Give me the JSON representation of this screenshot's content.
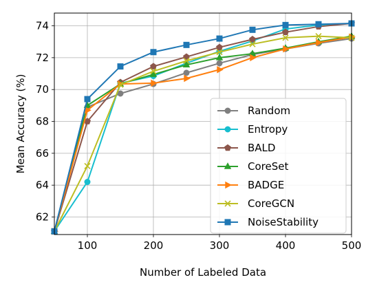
{
  "chart_data": {
    "type": "line",
    "title": "",
    "xlabel": "Number of Labeled Data",
    "ylabel": "Mean Accuracy (%)",
    "xlim": [
      50,
      500
    ],
    "ylim": [
      60.9,
      74.8
    ],
    "xticks": [
      100,
      200,
      300,
      400,
      500
    ],
    "yticks": [
      62,
      64,
      66,
      68,
      70,
      72,
      74
    ],
    "grid": true,
    "legend_position": "lower-right",
    "x": [
      50,
      100,
      150,
      200,
      250,
      300,
      350,
      400,
      450,
      500
    ],
    "series": [
      {
        "name": "Random",
        "color": "#7f7f7f",
        "marker": "circle",
        "values": [
          61.1,
          68.9,
          69.75,
          70.35,
          71.05,
          71.65,
          72.2,
          72.55,
          72.9,
          73.2
        ]
      },
      {
        "name": "Entropy",
        "color": "#17becf",
        "marker": "circle",
        "values": [
          61.1,
          64.2,
          70.4,
          70.85,
          71.65,
          72.4,
          73.05,
          73.8,
          74.05,
          74.15
        ]
      },
      {
        "name": "BALD",
        "color": "#8c564b",
        "marker": "pentagon",
        "values": [
          61.1,
          68.0,
          70.45,
          71.45,
          72.05,
          72.65,
          73.15,
          73.6,
          73.95,
          74.15
        ]
      },
      {
        "name": "CoreSet",
        "color": "#2ca02c",
        "marker": "triangle-up",
        "values": [
          61.1,
          69.0,
          70.35,
          70.95,
          71.55,
          72.0,
          72.25,
          72.6,
          73.0,
          73.35
        ]
      },
      {
        "name": "BADGE",
        "color": "#ff7f0e",
        "marker": "triangle-right",
        "values": [
          61.1,
          68.7,
          70.35,
          70.4,
          70.7,
          71.25,
          72.0,
          72.55,
          72.95,
          73.3
        ]
      },
      {
        "name": "CoreGCN",
        "color": "#bcbd22",
        "marker": "x",
        "values": [
          61.1,
          65.2,
          70.3,
          71.15,
          71.8,
          72.35,
          72.85,
          73.25,
          73.35,
          73.25
        ]
      },
      {
        "name": "NoiseStability",
        "color": "#1f77b4",
        "marker": "square",
        "values": [
          61.1,
          69.4,
          71.45,
          72.35,
          72.8,
          73.2,
          73.75,
          74.05,
          74.1,
          74.15
        ]
      }
    ]
  }
}
